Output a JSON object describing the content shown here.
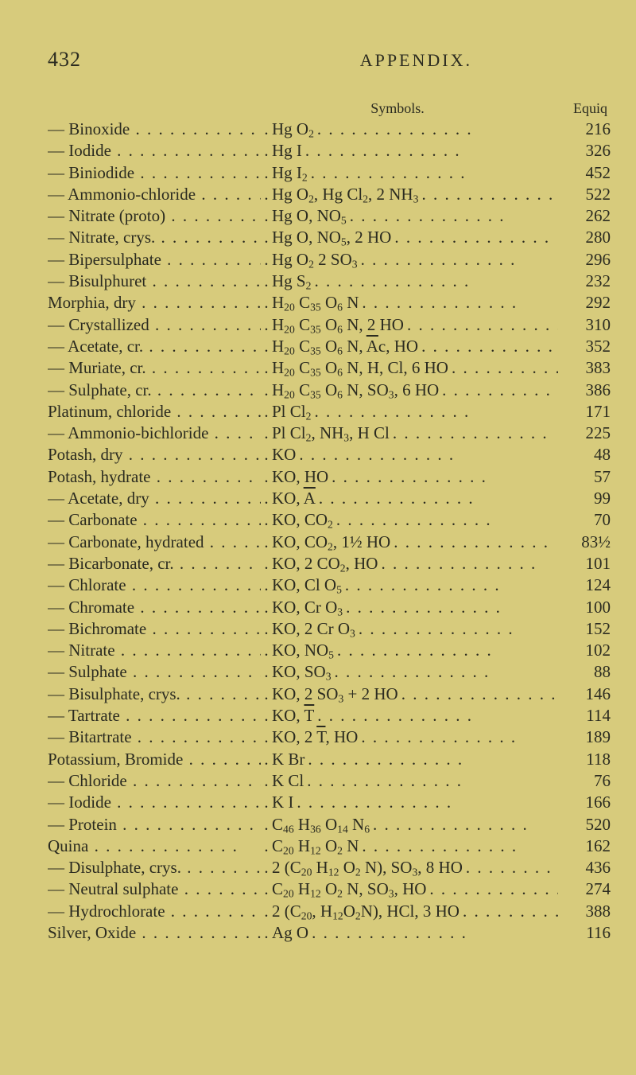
{
  "page_number": "432",
  "header": "APPENDIX.",
  "col_symbols": "Symbols.",
  "col_equiq": "Equiq",
  "rows": [
    {
      "name": "— Binoxide",
      "formula": "Hg O<sub>2</sub>",
      "equiq": "216"
    },
    {
      "name": "— Iodide",
      "formula": "Hg I",
      "equiq": "326"
    },
    {
      "name": "— Biniodide",
      "formula": "Hg I<sub>2</sub>",
      "equiq": "452"
    },
    {
      "name": "— Ammonio-chloride",
      "formula": "Hg O<sub>2</sub>, Hg Cl<sub>2</sub>, 2 NH<sub>3</sub>",
      "equiq": "522"
    },
    {
      "name": "— Nitrate (proto)",
      "formula": "Hg O, NO<sub>5</sub>",
      "equiq": "262"
    },
    {
      "name": "— Nitrate, crys.",
      "formula": "Hg O, NO<sub>5</sub>, 2 HO",
      "equiq": "280"
    },
    {
      "name": "— Bipersulphate",
      "formula": "Hg O<sub>2</sub> 2 SO<sub>3</sub>",
      "equiq": "296"
    },
    {
      "name": "— Bisulphuret",
      "formula": "Hg S<sub>2</sub>",
      "equiq": "232"
    },
    {
      "name": "Morphia, dry",
      "formula": "H<sub>20</sub> C<sub>35</sub> O<sub>6</sub> N",
      "equiq": "292"
    },
    {
      "name": "— Crystallized",
      "formula": "H<sub>20</sub> C<sub>35</sub> O<sub>6</sub> N, 2 HO",
      "equiq": "310"
    },
    {
      "name": "— Acetate, cr.",
      "formula": "H<sub>20</sub> C<sub>35</sub> O<sub>6</sub> N, <span class='ov'>A</span>c, HO",
      "equiq": "352"
    },
    {
      "name": "— Muriate, cr.",
      "formula": "H<sub>20</sub> C<sub>35</sub> O<sub>6</sub> N, H, Cl, 6 HO",
      "equiq": "383"
    },
    {
      "name": "— Sulphate, cr.",
      "formula": "H<sub>20</sub> C<sub>35</sub> O<sub>6</sub> N, SO<sub>3</sub>, 6 HO",
      "equiq": "386"
    },
    {
      "name": "Platinum, chloride",
      "formula": "Pl Cl<sub>2</sub>",
      "equiq": "171"
    },
    {
      "name": "— Ammonio-bichloride",
      "formula": "Pl Cl<sub>2</sub>, NH<sub>3</sub>, H Cl",
      "equiq": "225"
    },
    {
      "name": "Potash, dry",
      "formula": "KO",
      "equiq": "48"
    },
    {
      "name": "Potash, hydrate",
      "formula": "KO, HO",
      "equiq": "57"
    },
    {
      "name": "— Acetate, dry",
      "formula": "KO, <span class='ov'>A</span>",
      "equiq": "99"
    },
    {
      "name": "— Carbonate",
      "formula": "KO, CO<sub>2</sub>",
      "equiq": "70"
    },
    {
      "name": "— Carbonate, hydrated",
      "formula": "KO, CO<sub>2</sub>, 1½ HO",
      "equiq": "83½"
    },
    {
      "name": "— Bicarbonate, cr.",
      "formula": "KO, 2 CO<sub>2</sub>, HO",
      "equiq": "101"
    },
    {
      "name": "— Chlorate",
      "formula": "KO, Cl O<sub>5</sub>",
      "equiq": "124"
    },
    {
      "name": "— Chromate",
      "formula": "KO, Cr O<sub>3</sub>",
      "equiq": "100"
    },
    {
      "name": "— Bichromate",
      "formula": "KO, 2 Cr O<sub>3</sub>",
      "equiq": "152"
    },
    {
      "name": "— Nitrate",
      "formula": "KO, NO<sub>5</sub>",
      "equiq": "102"
    },
    {
      "name": "— Sulphate",
      "formula": "KO, SO<sub>3</sub>",
      "equiq": "88"
    },
    {
      "name": "— Bisulphate, crys.",
      "formula": "KO, 2 SO<sub>3</sub> + 2 HO",
      "equiq": "146"
    },
    {
      "name": "— Tartrate",
      "formula": "KO, <span class='ov'>T</span>",
      "equiq": "114"
    },
    {
      "name": "— Bitartrate",
      "formula": "KO, 2 <span class='ov'>T</span>, HO",
      "equiq": "189"
    },
    {
      "name": "Potassium, Bromide",
      "formula": "K Br",
      "equiq": "118"
    },
    {
      "name": "— Chloride",
      "formula": "K Cl",
      "equiq": "76"
    },
    {
      "name": "— Iodide",
      "formula": "K I",
      "equiq": "166"
    },
    {
      "name": "— Protein",
      "formula": "C<sub>46</sub> H<sub>36</sub> O<sub>14</sub> N<sub>6</sub>",
      "equiq": "520"
    },
    {
      "name": "Quina",
      "formula": "C<sub>20</sub> H<sub>12</sub> O<sub>2</sub> N",
      "equiq": "162"
    },
    {
      "name": "— Disulphate, crys.",
      "formula": "2 (C<sub>20</sub> H<sub>12</sub> O<sub>2</sub> N), SO<sub>3</sub>, 8 HO",
      "equiq": "436"
    },
    {
      "name": "— Neutral sulphate",
      "formula": "C<sub>20</sub> H<sub>12</sub> O<sub>2</sub> N, SO<sub>3</sub>, HO",
      "equiq": "274"
    },
    {
      "name": "— Hydrochlorate",
      "formula": "2 (C<sub>20</sub>, H<sub>12</sub>O<sub>2</sub>N), HCl, 3 HO",
      "equiq": "388"
    },
    {
      "name": "Silver, Oxide",
      "formula": "Ag O",
      "equiq": "116"
    }
  ]
}
